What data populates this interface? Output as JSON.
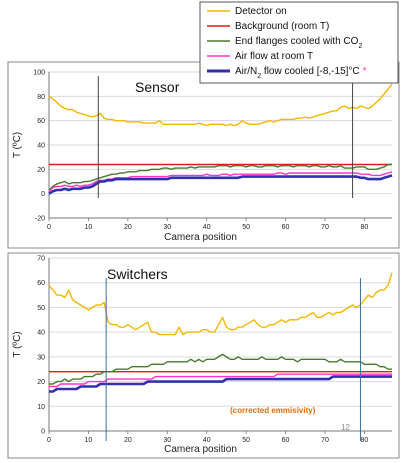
{
  "legend": {
    "items": [
      {
        "label": "Detector on",
        "color": "#f2b705"
      },
      {
        "label": "Background (room T)",
        "color": "#e31a1c"
      },
      {
        "label": "End flanges cooled with CO",
        "sub": "2",
        "color": "#4a7a2c"
      },
      {
        "label": "Air flow at room T",
        "color": "#ff33cc"
      },
      {
        "label": "Air/N",
        "sub": "2",
        "label_tail": " flow cooled [-8,-15]°C",
        "star": "*",
        "color": "#3030b0"
      }
    ]
  },
  "annotations": {
    "corrected_emissivity": "(corrected emmisivity)",
    "page_number": "12"
  },
  "chart_data": [
    {
      "type": "line",
      "title": "Sensor",
      "xlabel": "Camera position",
      "ylabel": "T (ºC)",
      "xlim": [
        0,
        87
      ],
      "ylim": [
        -20,
        100
      ],
      "xticks": [
        0,
        10,
        20,
        30,
        40,
        50,
        60,
        70,
        80
      ],
      "yticks": [
        -20,
        0,
        20,
        40,
        60,
        80,
        100
      ],
      "vlines": [
        12.5,
        77
      ],
      "x": [
        0,
        1,
        2,
        3,
        4,
        5,
        6,
        7,
        8,
        9,
        10,
        11,
        12,
        13,
        14,
        15,
        16,
        17,
        18,
        19,
        20,
        21,
        22,
        23,
        24,
        25,
        26,
        27,
        28,
        29,
        30,
        31,
        32,
        33,
        34,
        35,
        36,
        37,
        38,
        39,
        40,
        41,
        42,
        43,
        44,
        45,
        46,
        47,
        48,
        49,
        50,
        51,
        52,
        53,
        54,
        55,
        56,
        57,
        58,
        59,
        60,
        61,
        62,
        63,
        64,
        65,
        66,
        67,
        68,
        69,
        70,
        71,
        72,
        73,
        74,
        75,
        76,
        77,
        78,
        79,
        80,
        81,
        82,
        83,
        84,
        85,
        86,
        87
      ],
      "series": [
        {
          "name": "Detector on",
          "color": "#f2b705",
          "values": [
            80,
            78,
            75,
            72,
            70,
            69,
            69,
            67,
            66,
            65,
            64,
            63,
            64,
            66,
            62,
            61,
            61,
            60,
            60,
            60,
            59,
            59,
            59,
            59,
            58,
            58,
            58,
            58,
            60,
            57,
            57,
            57,
            57,
            57,
            57,
            57,
            57,
            57,
            58,
            57,
            56,
            57,
            57,
            57,
            57,
            56,
            57,
            56,
            57,
            60,
            58,
            57,
            57,
            57,
            58,
            59,
            60,
            59,
            60,
            61,
            61,
            61,
            61,
            62,
            62,
            63,
            62,
            63,
            64,
            65,
            66,
            67,
            68,
            68,
            71,
            72,
            70,
            71,
            70,
            72,
            71,
            70,
            72,
            75,
            78,
            82,
            86,
            90
          ]
        },
        {
          "name": "Background (room T)",
          "color": "#e31a1c",
          "values": [
            24,
            24,
            24,
            24,
            24,
            24,
            24,
            24,
            24,
            24,
            24,
            24,
            24,
            24,
            24,
            24,
            24,
            24,
            24,
            24,
            24,
            24,
            24,
            24,
            24,
            24,
            24,
            24,
            24,
            24,
            24,
            24,
            24,
            24,
            24,
            24,
            24,
            24,
            24,
            24,
            24,
            24,
            24,
            24,
            24,
            24,
            24,
            24,
            24,
            24,
            24,
            24,
            24,
            24,
            24,
            24,
            24,
            24,
            24,
            24,
            24,
            24,
            24,
            24,
            24,
            24,
            24,
            24,
            24,
            24,
            24,
            24,
            24,
            24,
            24,
            24,
            24,
            24,
            24,
            24,
            24,
            24,
            24,
            24,
            24,
            24,
            24,
            24
          ]
        },
        {
          "name": "End flanges cooled with CO2",
          "color": "#4a7a2c",
          "values": [
            3,
            6,
            8,
            9,
            10,
            8,
            9,
            9,
            9,
            10,
            10,
            11,
            12,
            13,
            14,
            15,
            16,
            16,
            17,
            17,
            18,
            18,
            18,
            19,
            19,
            19,
            20,
            20,
            20,
            21,
            21,
            20,
            21,
            21,
            21,
            21,
            22,
            21,
            22,
            22,
            22,
            22,
            22,
            23,
            23,
            23,
            22,
            23,
            23,
            23,
            22,
            23,
            23,
            22,
            22,
            23,
            23,
            23,
            22,
            23,
            23,
            23,
            22,
            23,
            23,
            23,
            22,
            23,
            23,
            22,
            22,
            23,
            22,
            22,
            23,
            21,
            21,
            21,
            22,
            22,
            22,
            20,
            20,
            20,
            21,
            22,
            24,
            24
          ]
        },
        {
          "name": "Air flow at room T",
          "color": "#ff33cc",
          "values": [
            2,
            5,
            6,
            6,
            7,
            6,
            6,
            7,
            6,
            7,
            7,
            8,
            10,
            11,
            11,
            12,
            12,
            13,
            13,
            13,
            13,
            14,
            14,
            14,
            14,
            14,
            14,
            14,
            14,
            14,
            14,
            15,
            15,
            15,
            15,
            15,
            15,
            15,
            15,
            15,
            16,
            15,
            15,
            15,
            16,
            16,
            15,
            16,
            16,
            16,
            16,
            16,
            16,
            16,
            16,
            16,
            16,
            16,
            17,
            17,
            16,
            17,
            17,
            17,
            17,
            17,
            17,
            17,
            17,
            17,
            17,
            17,
            17,
            17,
            17,
            17,
            17,
            17,
            17,
            16,
            16,
            16,
            15,
            15,
            15,
            16,
            17,
            18
          ]
        },
        {
          "name": "Air/N2 flow cooled [-8,-15]°C",
          "color": "#3030b0",
          "values": [
            0,
            2,
            3,
            3,
            4,
            3,
            4,
            4,
            4,
            5,
            5,
            6,
            8,
            10,
            10,
            11,
            11,
            12,
            12,
            12,
            12,
            12,
            12,
            12,
            12,
            12,
            12,
            12,
            12,
            12,
            12,
            13,
            13,
            13,
            13,
            13,
            13,
            13,
            13,
            13,
            13,
            13,
            13,
            13,
            13,
            13,
            13,
            13,
            13,
            14,
            14,
            14,
            14,
            14,
            14,
            14,
            14,
            14,
            14,
            14,
            14,
            14,
            14,
            14,
            14,
            14,
            14,
            14,
            14,
            14,
            14,
            14,
            14,
            14,
            14,
            14,
            14,
            14,
            14,
            13,
            13,
            12,
            12,
            12,
            12,
            13,
            14,
            15
          ]
        }
      ]
    },
    {
      "type": "line",
      "title": "Switchers",
      "xlabel": "Camera position",
      "ylabel": "T (ºC)",
      "xlim": [
        0,
        87
      ],
      "ylim": [
        0,
        70
      ],
      "xticks": [
        0,
        10,
        20,
        30,
        40,
        50,
        60,
        70,
        80
      ],
      "yticks": [
        0,
        10,
        20,
        30,
        40,
        50,
        60,
        70
      ],
      "vlines": [
        14.5,
        79
      ],
      "x": [
        0,
        1,
        2,
        3,
        4,
        5,
        6,
        7,
        8,
        9,
        10,
        11,
        12,
        13,
        14,
        15,
        16,
        17,
        18,
        19,
        20,
        21,
        22,
        23,
        24,
        25,
        26,
        27,
        28,
        29,
        30,
        31,
        32,
        33,
        34,
        35,
        36,
        37,
        38,
        39,
        40,
        41,
        42,
        43,
        44,
        45,
        46,
        47,
        48,
        49,
        50,
        51,
        52,
        53,
        54,
        55,
        56,
        57,
        58,
        59,
        60,
        61,
        62,
        63,
        64,
        65,
        66,
        67,
        68,
        69,
        70,
        71,
        72,
        73,
        74,
        75,
        76,
        77,
        78,
        79,
        80,
        81,
        82,
        83,
        84,
        85,
        86,
        87
      ],
      "series": [
        {
          "name": "Detector on",
          "color": "#f2b705",
          "values": [
            59,
            57,
            55,
            55,
            54,
            57,
            53,
            52,
            51,
            50,
            49,
            50,
            51,
            51,
            52,
            44,
            43,
            43,
            42,
            42,
            43,
            42,
            41,
            42,
            43,
            44,
            40,
            40,
            39,
            39,
            39,
            39,
            39,
            42,
            39,
            40,
            40,
            40,
            40,
            41,
            41,
            40,
            40,
            43,
            46,
            42,
            41,
            41,
            42,
            42,
            43,
            44,
            45,
            43,
            42,
            42,
            43,
            43,
            44,
            45,
            44,
            45,
            45,
            45,
            46,
            46,
            47,
            48,
            46,
            46,
            47,
            48,
            47,
            48,
            48,
            49,
            50,
            51,
            50,
            51,
            53,
            55,
            54,
            56,
            57,
            57,
            59,
            64
          ]
        },
        {
          "name": "Background (room T)",
          "color": "#e31a1c",
          "values": [
            24,
            24,
            24,
            24,
            24,
            24,
            24,
            24,
            24,
            24,
            24,
            24,
            24,
            24,
            24,
            24,
            24,
            24,
            24,
            24,
            24,
            24,
            24,
            24,
            24,
            24,
            24,
            24,
            24,
            24,
            24,
            24,
            24,
            24,
            24,
            24,
            24,
            24,
            24,
            24,
            24,
            24,
            24,
            24,
            24,
            24,
            24,
            24,
            24,
            24,
            24,
            24,
            24,
            24,
            24,
            24,
            24,
            24,
            24,
            24,
            24,
            24,
            24,
            24,
            24,
            24,
            24,
            24,
            24,
            24,
            24,
            24,
            24,
            24,
            24,
            24,
            24,
            24,
            24,
            24,
            24,
            24,
            24,
            24,
            24,
            24,
            24,
            24
          ]
        },
        {
          "name": "End flanges cooled with CO2",
          "color": "#4a7a2c",
          "values": [
            19,
            19,
            20,
            20,
            21,
            20,
            21,
            21,
            21,
            22,
            22,
            22,
            23,
            23,
            24,
            24,
            24,
            25,
            25,
            25,
            25,
            26,
            26,
            26,
            26,
            26,
            27,
            27,
            27,
            27,
            28,
            28,
            28,
            28,
            28,
            28,
            29,
            28,
            29,
            28,
            29,
            29,
            29,
            30,
            31,
            30,
            29,
            29,
            30,
            29,
            29,
            29,
            29,
            29,
            30,
            29,
            29,
            29,
            29,
            30,
            29,
            29,
            29,
            28,
            29,
            29,
            29,
            29,
            29,
            29,
            29,
            28,
            28,
            28,
            29,
            28,
            28,
            28,
            28,
            28,
            27,
            27,
            27,
            27,
            26,
            26,
            25,
            25
          ]
        },
        {
          "name": "Air flow at room T",
          "color": "#ff33cc",
          "values": [
            18,
            18,
            18,
            19,
            19,
            19,
            19,
            19,
            19,
            19,
            20,
            20,
            20,
            20,
            20,
            21,
            21,
            21,
            21,
            21,
            21,
            21,
            21,
            21,
            21,
            21,
            21,
            22,
            22,
            22,
            22,
            22,
            22,
            22,
            22,
            22,
            22,
            22,
            22,
            22,
            22,
            22,
            22,
            22,
            22,
            22,
            22,
            22,
            22,
            22,
            22,
            22,
            22,
            22,
            22,
            22,
            22,
            22,
            23,
            23,
            23,
            23,
            23,
            23,
            23,
            23,
            23,
            23,
            23,
            23,
            23,
            23,
            23,
            23,
            23,
            23,
            23,
            23,
            23,
            23,
            23,
            23,
            23,
            23,
            23,
            23,
            23,
            23
          ]
        },
        {
          "name": "Air/N2 flow cooled [-8,-15]°C",
          "color": "#3030b0",
          "values": [
            16,
            16,
            17,
            17,
            17,
            17,
            17,
            17,
            18,
            18,
            18,
            18,
            18,
            19,
            19,
            19,
            19,
            19,
            19,
            19,
            19,
            19,
            19,
            19,
            19,
            20,
            20,
            20,
            20,
            20,
            20,
            20,
            20,
            20,
            20,
            20,
            20,
            20,
            20,
            20,
            20,
            20,
            20,
            20,
            20,
            21,
            21,
            21,
            21,
            21,
            21,
            21,
            21,
            21,
            21,
            21,
            21,
            21,
            21,
            21,
            21,
            21,
            21,
            21,
            21,
            21,
            21,
            21,
            21,
            21,
            21,
            21,
            22,
            22,
            22,
            22,
            22,
            22,
            22,
            22,
            22,
            22,
            22,
            22,
            22,
            22,
            22,
            22
          ]
        }
      ]
    }
  ]
}
